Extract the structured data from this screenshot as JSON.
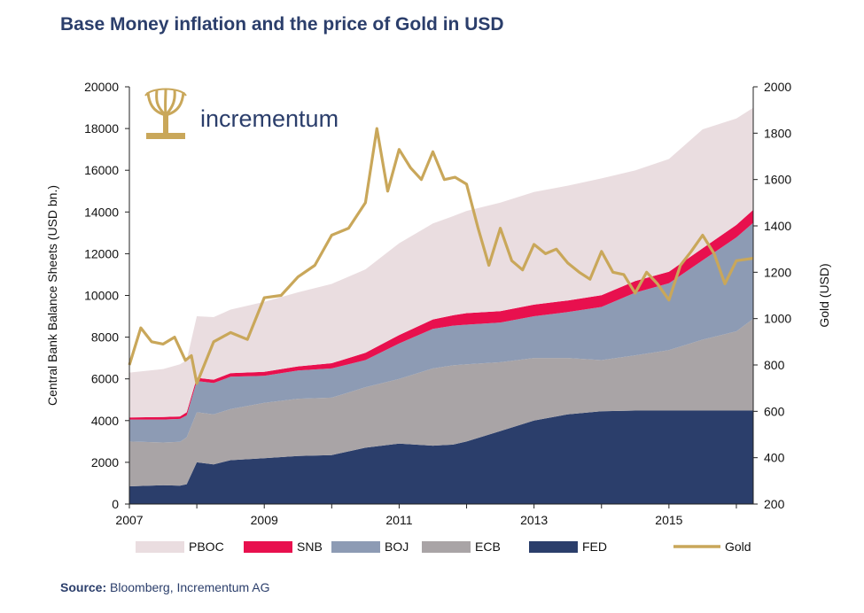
{
  "chart_data": {
    "type": "area",
    "title": "Base Money inflation and the price of Gold in USD",
    "ylabel_left": "Central Bank Balance Sheets (USD bn.)",
    "ylabel_right": "Gold (USD)",
    "xlabel": "",
    "xlim": [
      2007.0,
      2016.25
    ],
    "ylim_left": [
      0,
      20000
    ],
    "ylim_right": [
      200,
      2000
    ],
    "x_ticks": [
      "2007",
      "2009",
      "2011",
      "2013",
      "2015"
    ],
    "y_ticks_left": [
      "0",
      "2000",
      "4000",
      "6000",
      "8000",
      "10000",
      "12000",
      "14000",
      "16000",
      "18000",
      "20000"
    ],
    "y_ticks_right": [
      "200",
      "400",
      "600",
      "800",
      "1000",
      "1200",
      "1400",
      "1600",
      "1800",
      "2000"
    ],
    "legend_position": "bottom",
    "stack_order": [
      "FED",
      "ECB",
      "BOJ",
      "SNB",
      "PBOC"
    ],
    "stacked_series": [
      {
        "name": "FED",
        "color": "#2b3e6b",
        "x": [
          2007.0,
          2007.5,
          2007.75,
          2007.85,
          2008.0,
          2008.25,
          2008.5,
          2009.0,
          2009.5,
          2010.0,
          2010.5,
          2011.0,
          2011.5,
          2011.8,
          2012.0,
          2012.5,
          2013.0,
          2013.5,
          2014.0,
          2014.5,
          2015.0,
          2015.5,
          2016.0,
          2016.25
        ],
        "values": [
          850,
          900,
          880,
          950,
          2000,
          1900,
          2100,
          2200,
          2300,
          2350,
          2700,
          2900,
          2800,
          2850,
          3000,
          3500,
          4000,
          4300,
          4450,
          4480,
          4480,
          4480,
          4480,
          4480
        ]
      },
      {
        "name": "ECB",
        "color": "#a9a4a6",
        "x": [
          2007.0,
          2007.5,
          2007.75,
          2007.85,
          2008.0,
          2008.25,
          2008.5,
          2009.0,
          2009.5,
          2010.0,
          2010.5,
          2011.0,
          2011.5,
          2011.8,
          2012.0,
          2012.5,
          2013.0,
          2013.5,
          2014.0,
          2014.5,
          2015.0,
          2015.5,
          2016.0,
          2016.25
        ],
        "values": [
          2150,
          2050,
          2100,
          2250,
          2400,
          2400,
          2450,
          2650,
          2750,
          2750,
          2900,
          3100,
          3700,
          3800,
          3700,
          3300,
          3000,
          2700,
          2450,
          2650,
          2900,
          3400,
          3800,
          4400
        ]
      },
      {
        "name": "BOJ",
        "color": "#8d9bb4",
        "x": [
          2007.0,
          2007.5,
          2007.75,
          2007.85,
          2008.0,
          2008.25,
          2008.5,
          2009.0,
          2009.5,
          2010.0,
          2010.5,
          2011.0,
          2011.5,
          2011.8,
          2012.0,
          2012.5,
          2013.0,
          2013.5,
          2014.0,
          2014.5,
          2015.0,
          2015.5,
          2016.0,
          2016.25
        ],
        "values": [
          1050,
          1100,
          1100,
          1050,
          1500,
          1500,
          1550,
          1300,
          1350,
          1400,
          1300,
          1700,
          1900,
          1900,
          1900,
          1900,
          2000,
          2200,
          2550,
          3000,
          3200,
          3800,
          4500,
          4600
        ]
      },
      {
        "name": "SNB",
        "color": "#e8104e",
        "x": [
          2007.0,
          2007.5,
          2007.75,
          2007.85,
          2008.0,
          2008.25,
          2008.5,
          2009.0,
          2009.5,
          2010.0,
          2010.5,
          2011.0,
          2011.5,
          2011.8,
          2012.0,
          2012.5,
          2013.0,
          2013.5,
          2014.0,
          2014.5,
          2015.0,
          2015.5,
          2016.0,
          2016.25
        ],
        "values": [
          100,
          120,
          120,
          150,
          150,
          160,
          170,
          190,
          200,
          250,
          350,
          400,
          450,
          500,
          550,
          550,
          560,
          560,
          560,
          560,
          560,
          580,
          600,
          620
        ]
      },
      {
        "name": "PBOC",
        "color": "#eadde0",
        "x": [
          2007.0,
          2007.5,
          2007.75,
          2007.85,
          2008.0,
          2008.25,
          2008.5,
          2009.0,
          2009.5,
          2010.0,
          2010.5,
          2011.0,
          2011.5,
          2011.8,
          2012.0,
          2012.5,
          2013.0,
          2013.5,
          2014.0,
          2014.5,
          2015.0,
          2015.5,
          2016.0,
          2016.25
        ],
        "values": [
          2150,
          2300,
          2500,
          2500,
          2950,
          3000,
          3050,
          3350,
          3550,
          3800,
          4000,
          4400,
          4600,
          4750,
          4900,
          5200,
          5400,
          5500,
          5600,
          5300,
          5400,
          5700,
          5100,
          4900
        ]
      }
    ],
    "line_series": {
      "name": "Gold",
      "color": "#c9a75a",
      "axis": "right",
      "x": [
        2007.0,
        2007.17,
        2007.33,
        2007.5,
        2007.67,
        2007.83,
        2007.92,
        2008.0,
        2008.25,
        2008.5,
        2008.75,
        2009.0,
        2009.25,
        2009.5,
        2009.75,
        2010.0,
        2010.25,
        2010.5,
        2010.67,
        2010.83,
        2011.0,
        2011.17,
        2011.33,
        2011.5,
        2011.67,
        2011.83,
        2012.0,
        2012.17,
        2012.33,
        2012.5,
        2012.67,
        2012.83,
        2013.0,
        2013.17,
        2013.33,
        2013.5,
        2013.67,
        2013.83,
        2014.0,
        2014.17,
        2014.33,
        2014.5,
        2014.67,
        2014.83,
        2015.0,
        2015.17,
        2015.33,
        2015.5,
        2015.67,
        2015.83,
        2016.0,
        2016.25
      ],
      "values": [
        800,
        960,
        900,
        890,
        920,
        820,
        840,
        720,
        900,
        940,
        910,
        1090,
        1100,
        1180,
        1230,
        1360,
        1390,
        1500,
        1820,
        1550,
        1730,
        1650,
        1600,
        1720,
        1600,
        1610,
        1580,
        1390,
        1230,
        1390,
        1250,
        1210,
        1320,
        1280,
        1300,
        1240,
        1200,
        1170,
        1290,
        1200,
        1190,
        1110,
        1200,
        1150,
        1080,
        1230,
        1290,
        1360,
        1280,
        1150,
        1250,
        1260
      ]
    },
    "legend": [
      "PBOC",
      "SNB",
      "BOJ",
      "ECB",
      "FED",
      "Gold"
    ]
  },
  "source": {
    "label": "Source:",
    "text": " Bloomberg, Incrementum AG"
  },
  "logo": {
    "text": "incrementum"
  }
}
